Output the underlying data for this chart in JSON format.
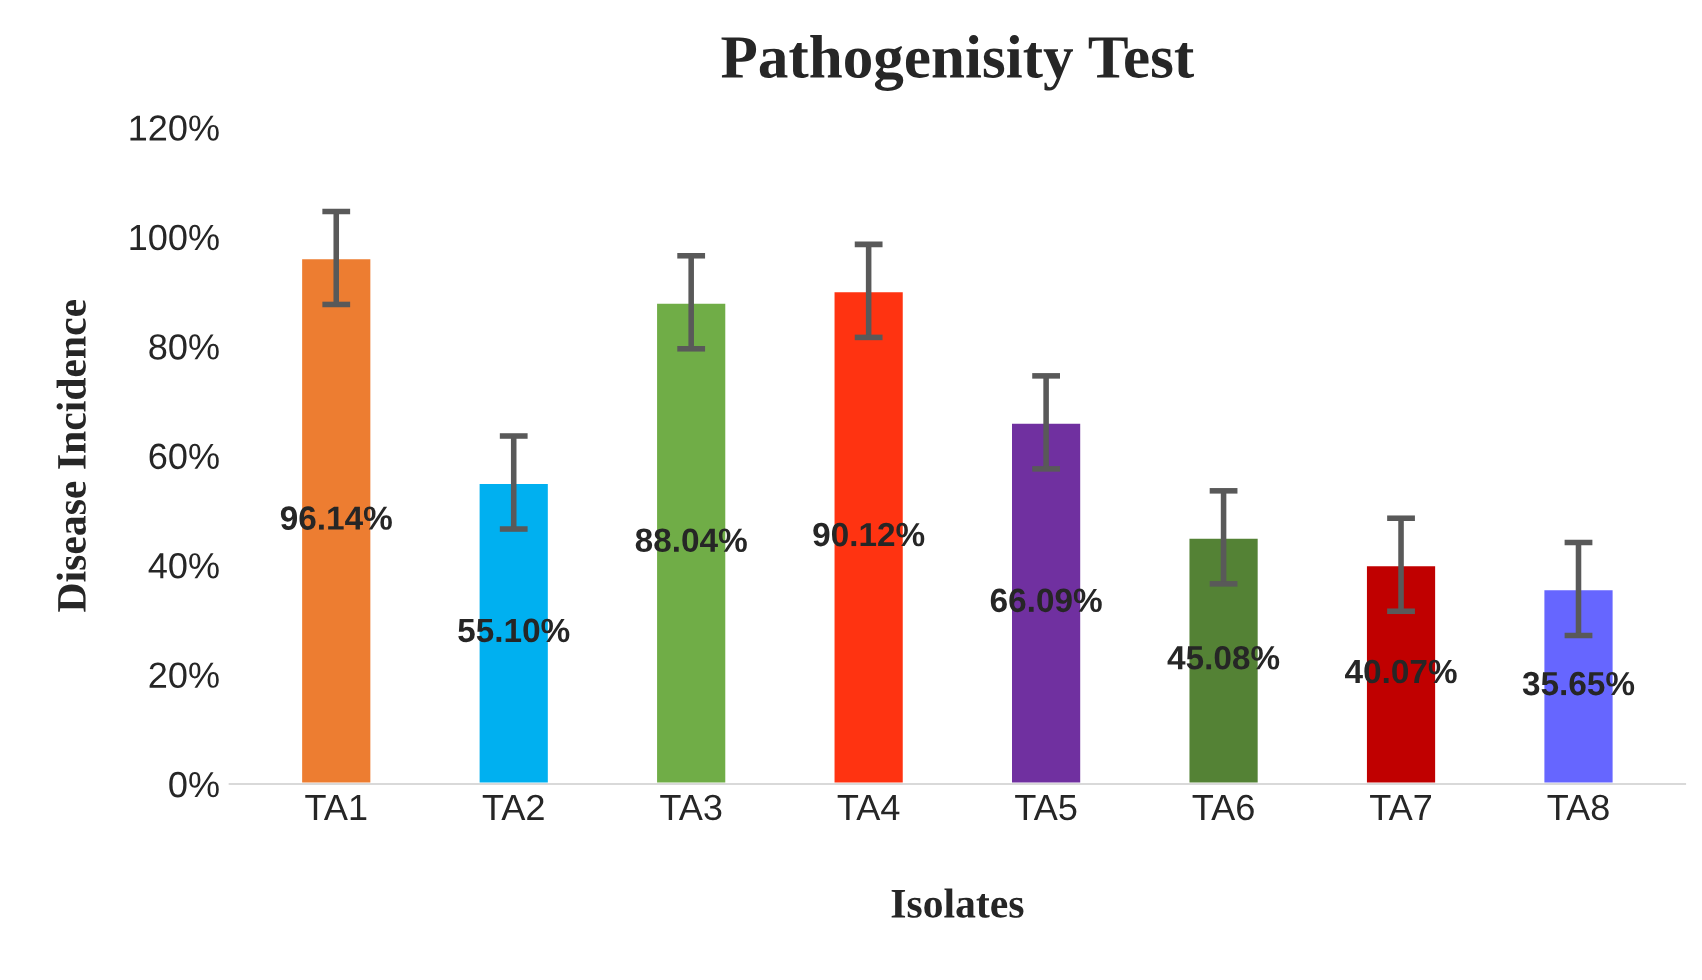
{
  "chart_data": {
    "type": "bar",
    "title": "Pathogenisity Test",
    "xlabel": "Isolates",
    "ylabel": "Disease Incidence",
    "categories": [
      "TA1",
      "TA2",
      "TA3",
      "TA4",
      "TA5",
      "TA6",
      "TA7",
      "TA8"
    ],
    "values": [
      96.14,
      55.1,
      88.04,
      90.12,
      66.09,
      45.08,
      40.07,
      35.65
    ],
    "colors": [
      "#ed7d31",
      "#00b0f0",
      "#70ad47",
      "#ff3311",
      "#7030a0",
      "#548235",
      "#c00000",
      "#6666ff"
    ],
    "errors": [
      8.5,
      8.5,
      8.5,
      8.5,
      8.5,
      8.5,
      8.5,
      8.5
    ],
    "value_labels": [
      "96.14%",
      "55.10%",
      "88.04%",
      "90.12%",
      "66.09%",
      "45.08%",
      "40.07%",
      "35.65%"
    ],
    "ylim": [
      0,
      120
    ],
    "yticks": [
      {
        "value": 0,
        "label": "0%"
      },
      {
        "value": 20,
        "label": "20%"
      },
      {
        "value": 40,
        "label": "40%"
      },
      {
        "value": 60,
        "label": "60%"
      },
      {
        "value": 80,
        "label": "80%"
      },
      {
        "value": 100,
        "label": "100%"
      },
      {
        "value": 120,
        "label": "120%"
      }
    ],
    "grid": false
  }
}
